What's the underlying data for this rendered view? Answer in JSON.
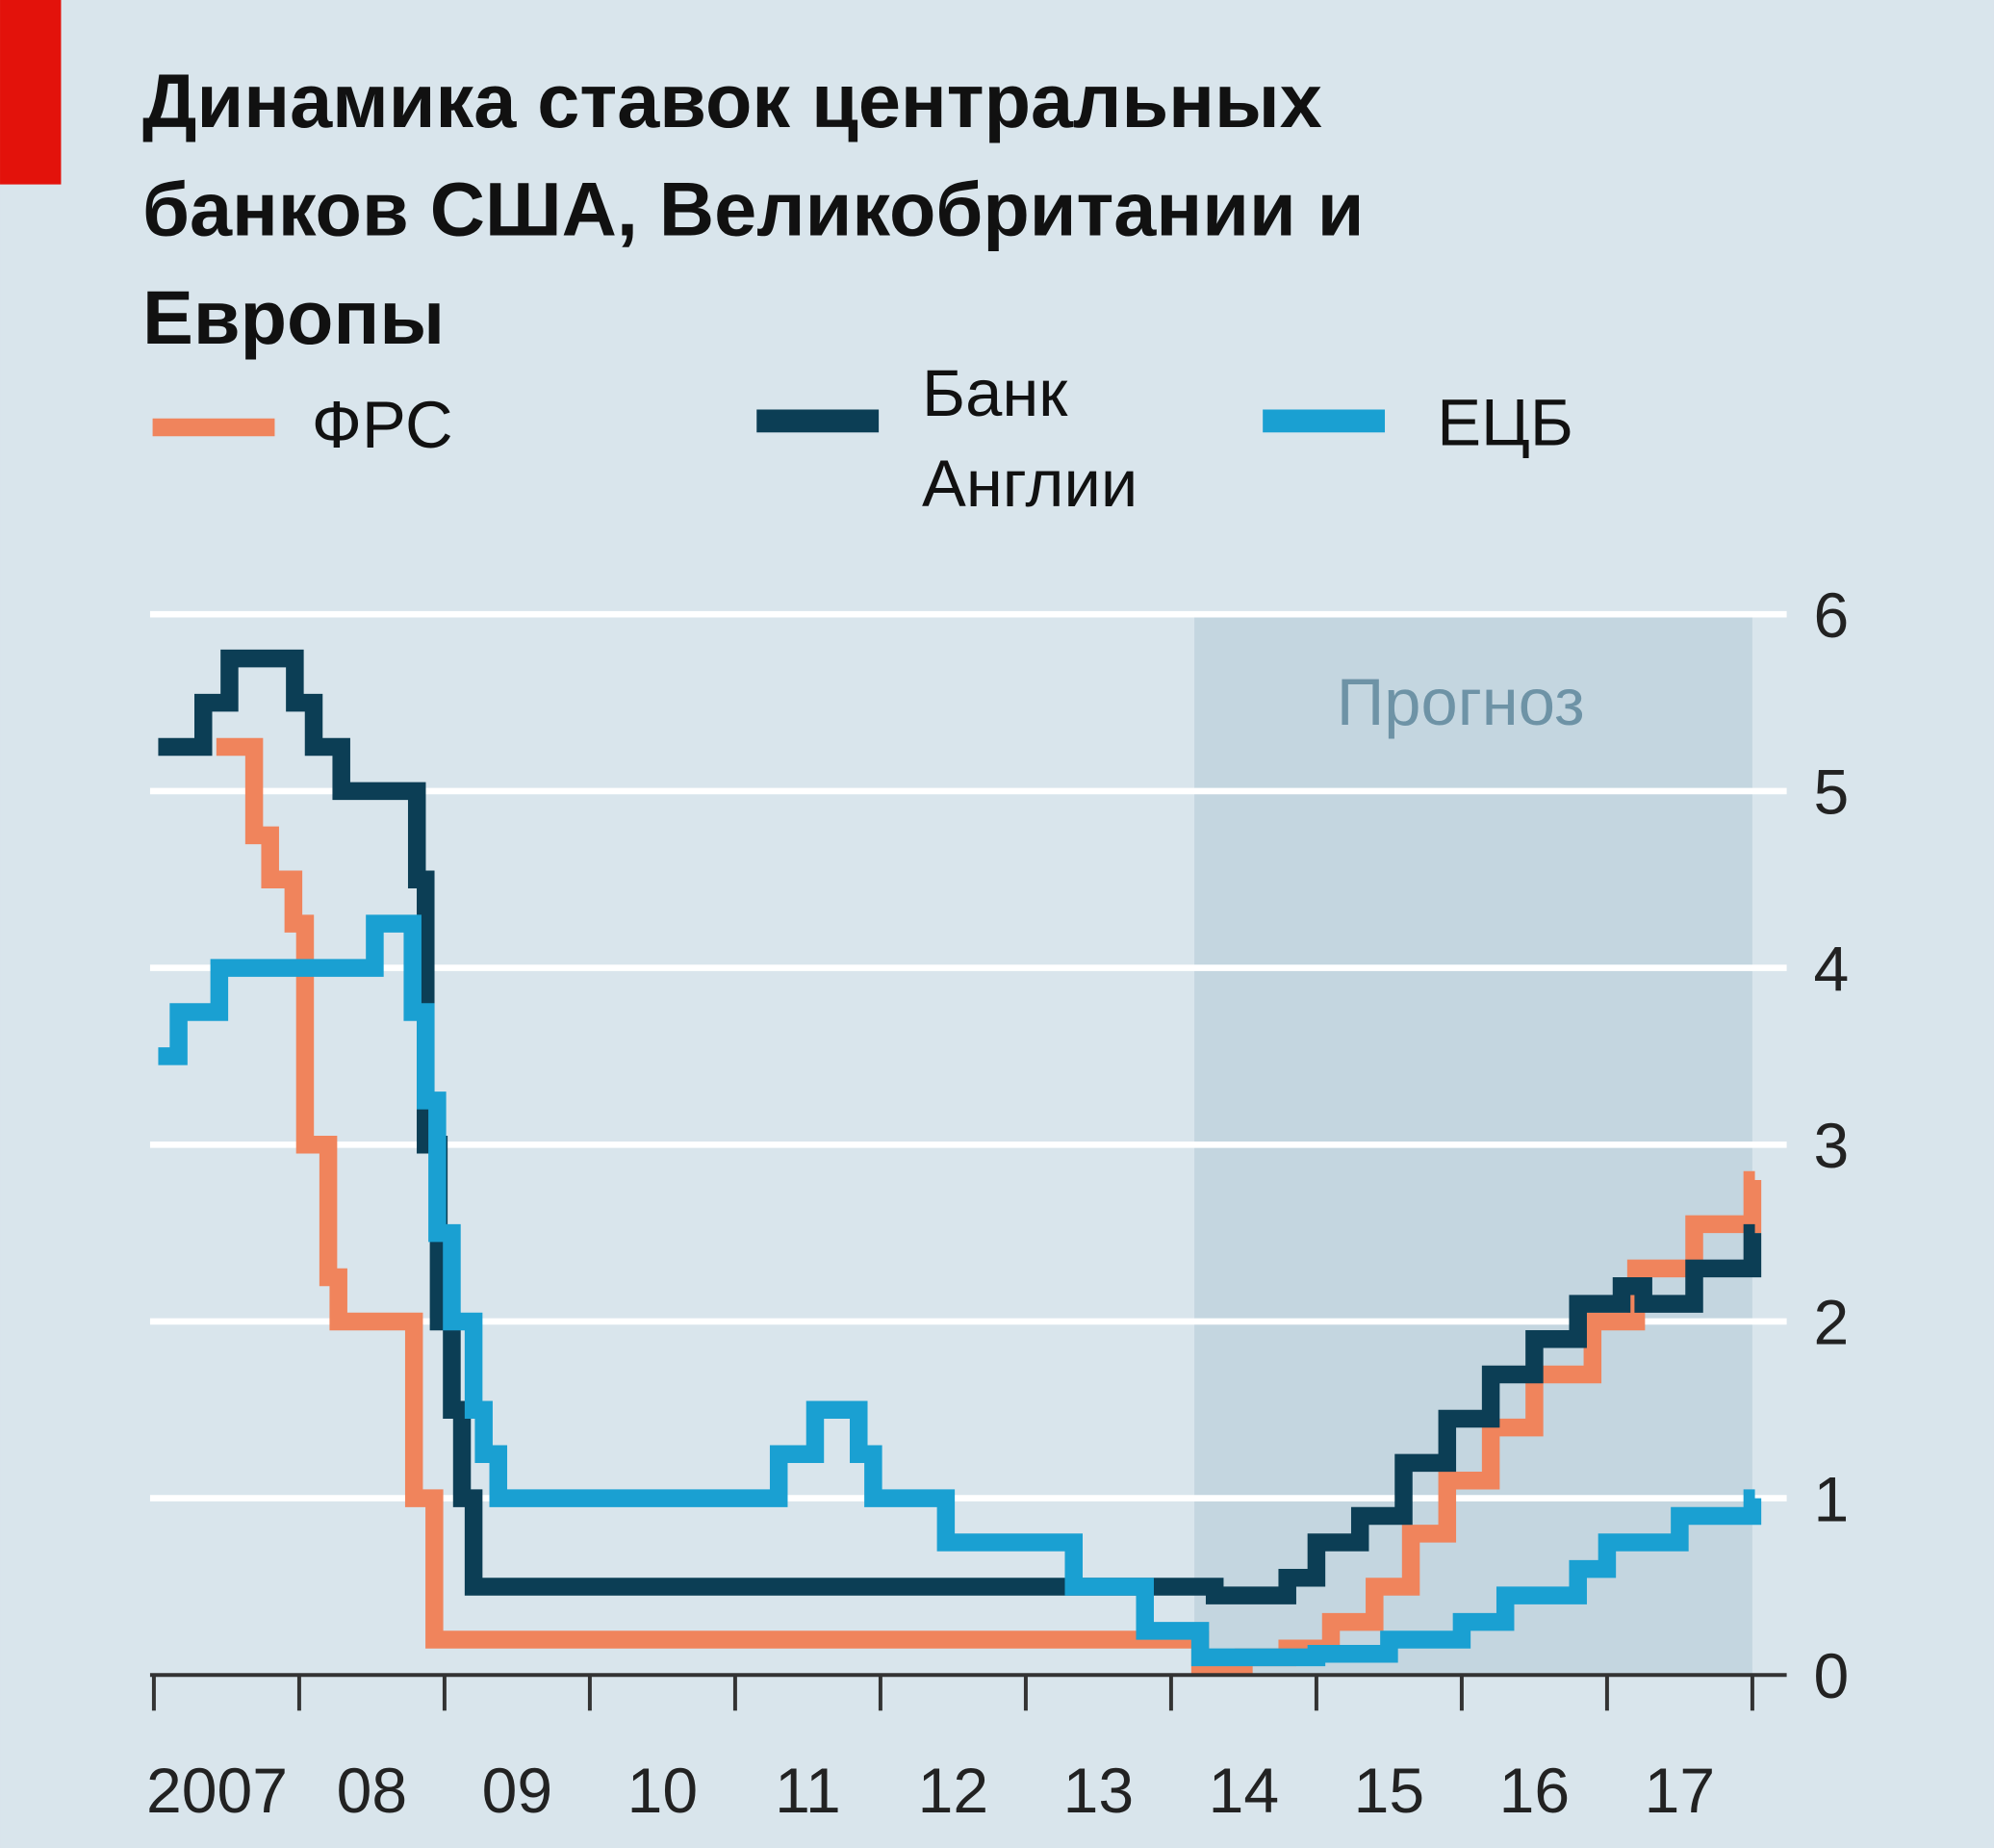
{
  "chart_data": {
    "type": "line",
    "title": "Динамика ставок центральных банков США, Великобритании и Европы",
    "title_lines": [
      "Динамика ставок центральных",
      "банков США, Великобритании и",
      "Европы"
    ],
    "forecast_label": "Прогноз",
    "forecast_start": 2014.16,
    "xlim": [
      2007,
      2018
    ],
    "ylim": [
      0,
      6
    ],
    "y_ticks": [
      "0",
      "1",
      "2",
      "3",
      "4",
      "5",
      "6"
    ],
    "x_tick_labels": [
      "2007",
      "08",
      "09",
      "10",
      "11",
      "12",
      "13",
      "14",
      "15",
      "16",
      "17"
    ],
    "grid": true,
    "legend_position": "top",
    "series": [
      {
        "name": "ФРС",
        "color": "#f0845c",
        "points": [
          [
            2007.43,
            5.25
          ],
          [
            2007.69,
            4.75
          ],
          [
            2007.8,
            4.5
          ],
          [
            2007.96,
            4.25
          ],
          [
            2008.04,
            3.0
          ],
          [
            2008.2,
            2.25
          ],
          [
            2008.27,
            2.0
          ],
          [
            2008.79,
            1.0
          ],
          [
            2008.93,
            0.2
          ],
          [
            2013.86,
            0.2
          ],
          [
            2014.2,
            0.05
          ],
          [
            2014.5,
            0.1
          ],
          [
            2014.8,
            0.15
          ],
          [
            2015.1,
            0.3
          ],
          [
            2015.4,
            0.5
          ],
          [
            2015.65,
            0.8
          ],
          [
            2015.9,
            1.1
          ],
          [
            2016.2,
            1.4
          ],
          [
            2016.5,
            1.7
          ],
          [
            2016.9,
            2.0
          ],
          [
            2017.2,
            2.3
          ],
          [
            2017.6,
            2.55
          ],
          [
            2018.0,
            2.8
          ]
        ]
      },
      {
        "name": "Банк Англии",
        "name_lines": [
          "Банк",
          "Англии"
        ],
        "color": "#0c3e55",
        "points": [
          [
            2007.03,
            5.25
          ],
          [
            2007.34,
            5.5
          ],
          [
            2007.52,
            5.75
          ],
          [
            2007.97,
            5.5
          ],
          [
            2008.1,
            5.25
          ],
          [
            2008.29,
            5.0
          ],
          [
            2008.81,
            4.5
          ],
          [
            2008.87,
            3.0
          ],
          [
            2008.96,
            2.0
          ],
          [
            2009.05,
            1.5
          ],
          [
            2009.12,
            1.0
          ],
          [
            2009.2,
            0.5
          ],
          [
            2014.2,
            0.5
          ],
          [
            2014.3,
            0.45
          ],
          [
            2014.6,
            0.45
          ],
          [
            2014.8,
            0.55
          ],
          [
            2015.0,
            0.75
          ],
          [
            2015.3,
            0.9
          ],
          [
            2015.6,
            1.2
          ],
          [
            2015.9,
            1.45
          ],
          [
            2016.2,
            1.7
          ],
          [
            2016.5,
            1.9
          ],
          [
            2016.8,
            2.1
          ],
          [
            2017.1,
            2.2
          ],
          [
            2017.25,
            2.1
          ],
          [
            2017.6,
            2.3
          ],
          [
            2018.0,
            2.5
          ]
        ]
      },
      {
        "name": "ЕЦБ",
        "color": "#1aa0d2",
        "points": [
          [
            2007.03,
            3.5
          ],
          [
            2007.17,
            3.75
          ],
          [
            2007.45,
            4.0
          ],
          [
            2008.52,
            4.25
          ],
          [
            2008.78,
            3.75
          ],
          [
            2008.87,
            3.25
          ],
          [
            2008.95,
            2.5
          ],
          [
            2009.05,
            2.0
          ],
          [
            2009.2,
            1.5
          ],
          [
            2009.27,
            1.25
          ],
          [
            2009.37,
            1.0
          ],
          [
            2011.3,
            1.25
          ],
          [
            2011.55,
            1.5
          ],
          [
            2011.85,
            1.25
          ],
          [
            2011.95,
            1.0
          ],
          [
            2012.45,
            0.75
          ],
          [
            2013.33,
            0.5
          ],
          [
            2013.82,
            0.25
          ],
          [
            2014.2,
            0.1
          ],
          [
            2014.7,
            0.1
          ],
          [
            2015.0,
            0.12
          ],
          [
            2015.5,
            0.2
          ],
          [
            2016.0,
            0.3
          ],
          [
            2016.3,
            0.45
          ],
          [
            2016.8,
            0.6
          ],
          [
            2017.0,
            0.75
          ],
          [
            2017.5,
            0.9
          ],
          [
            2018.0,
            1.0
          ]
        ]
      }
    ]
  }
}
